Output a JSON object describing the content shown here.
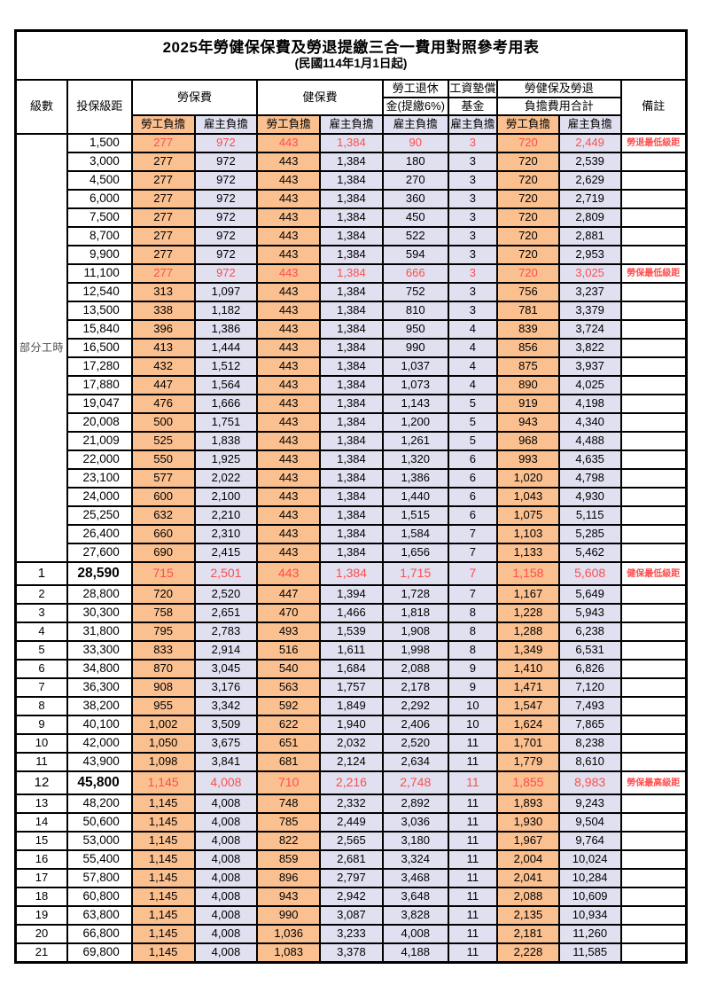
{
  "title": "2025年勞健保保費及勞退提繳三合一費用對照參考用表",
  "subtitle": "(民國114年1月1日起)",
  "colors": {
    "employee_bg": "#FAC090",
    "employer_bg": "#E0E0F0",
    "highlight_red": "#FF4D4D"
  },
  "columns": {
    "level": "級數",
    "bracket": "投保級距",
    "labor_insurance": "勞保費",
    "health_insurance": "健保費",
    "pension_line1": "勞工退休",
    "pension_line2": "金(提繳6%)",
    "wage_fund_line1": "工資墊償",
    "wage_fund_line2": "基金",
    "total_line1": "勞健保及勞退",
    "total_line2": "負擔費用合計",
    "remark": "備註",
    "employee_share": "勞工負擔",
    "employer_share": "雇主負擔"
  },
  "group_label": "部分工時",
  "rows": [
    {
      "level": "",
      "bracket": "1,500",
      "values": [
        "277",
        "972",
        "443",
        "1,384",
        "90",
        "3",
        "720",
        "2,449"
      ],
      "note": "勞退最低級距",
      "style": "red"
    },
    {
      "level": "",
      "bracket": "3,000",
      "values": [
        "277",
        "972",
        "443",
        "1,384",
        "180",
        "3",
        "720",
        "2,539"
      ],
      "note": "",
      "style": ""
    },
    {
      "level": "",
      "bracket": "4,500",
      "values": [
        "277",
        "972",
        "443",
        "1,384",
        "270",
        "3",
        "720",
        "2,629"
      ],
      "note": "",
      "style": ""
    },
    {
      "level": "",
      "bracket": "6,000",
      "values": [
        "277",
        "972",
        "443",
        "1,384",
        "360",
        "3",
        "720",
        "2,719"
      ],
      "note": "",
      "style": ""
    },
    {
      "level": "",
      "bracket": "7,500",
      "values": [
        "277",
        "972",
        "443",
        "1,384",
        "450",
        "3",
        "720",
        "2,809"
      ],
      "note": "",
      "style": ""
    },
    {
      "level": "",
      "bracket": "8,700",
      "values": [
        "277",
        "972",
        "443",
        "1,384",
        "522",
        "3",
        "720",
        "2,881"
      ],
      "note": "",
      "style": ""
    },
    {
      "level": "",
      "bracket": "9,900",
      "values": [
        "277",
        "972",
        "443",
        "1,384",
        "594",
        "3",
        "720",
        "2,953"
      ],
      "note": "",
      "style": ""
    },
    {
      "level": "",
      "bracket": "11,100",
      "values": [
        "277",
        "972",
        "443",
        "1,384",
        "666",
        "3",
        "720",
        "3,025"
      ],
      "note": "勞保最低級距",
      "style": "red"
    },
    {
      "level": "",
      "bracket": "12,540",
      "values": [
        "313",
        "1,097",
        "443",
        "1,384",
        "752",
        "3",
        "756",
        "3,237"
      ],
      "note": "",
      "style": ""
    },
    {
      "level": "",
      "bracket": "13,500",
      "values": [
        "338",
        "1,182",
        "443",
        "1,384",
        "810",
        "3",
        "781",
        "3,379"
      ],
      "note": "",
      "style": ""
    },
    {
      "level": "",
      "bracket": "15,840",
      "values": [
        "396",
        "1,386",
        "443",
        "1,384",
        "950",
        "4",
        "839",
        "3,724"
      ],
      "note": "",
      "style": ""
    },
    {
      "level": "",
      "bracket": "16,500",
      "values": [
        "413",
        "1,444",
        "443",
        "1,384",
        "990",
        "4",
        "856",
        "3,822"
      ],
      "note": "",
      "style": ""
    },
    {
      "level": "",
      "bracket": "17,280",
      "values": [
        "432",
        "1,512",
        "443",
        "1,384",
        "1,037",
        "4",
        "875",
        "3,937"
      ],
      "note": "",
      "style": ""
    },
    {
      "level": "",
      "bracket": "17,880",
      "values": [
        "447",
        "1,564",
        "443",
        "1,384",
        "1,073",
        "4",
        "890",
        "4,025"
      ],
      "note": "",
      "style": ""
    },
    {
      "level": "",
      "bracket": "19,047",
      "values": [
        "476",
        "1,666",
        "443",
        "1,384",
        "1,143",
        "5",
        "919",
        "4,198"
      ],
      "note": "",
      "style": ""
    },
    {
      "level": "",
      "bracket": "20,008",
      "values": [
        "500",
        "1,751",
        "443",
        "1,384",
        "1,200",
        "5",
        "943",
        "4,340"
      ],
      "note": "",
      "style": ""
    },
    {
      "level": "",
      "bracket": "21,009",
      "values": [
        "525",
        "1,838",
        "443",
        "1,384",
        "1,261",
        "5",
        "968",
        "4,488"
      ],
      "note": "",
      "style": ""
    },
    {
      "level": "",
      "bracket": "22,000",
      "values": [
        "550",
        "1,925",
        "443",
        "1,384",
        "1,320",
        "6",
        "993",
        "4,635"
      ],
      "note": "",
      "style": ""
    },
    {
      "level": "",
      "bracket": "23,100",
      "values": [
        "577",
        "2,022",
        "443",
        "1,384",
        "1,386",
        "6",
        "1,020",
        "4,798"
      ],
      "note": "",
      "style": ""
    },
    {
      "level": "",
      "bracket": "24,000",
      "values": [
        "600",
        "2,100",
        "443",
        "1,384",
        "1,440",
        "6",
        "1,043",
        "4,930"
      ],
      "note": "",
      "style": ""
    },
    {
      "level": "",
      "bracket": "25,250",
      "values": [
        "632",
        "2,210",
        "443",
        "1,384",
        "1,515",
        "6",
        "1,075",
        "5,115"
      ],
      "note": "",
      "style": ""
    },
    {
      "level": "",
      "bracket": "26,400",
      "values": [
        "660",
        "2,310",
        "443",
        "1,384",
        "1,584",
        "7",
        "1,103",
        "5,285"
      ],
      "note": "",
      "style": ""
    },
    {
      "level": "",
      "bracket": "27,600",
      "values": [
        "690",
        "2,415",
        "443",
        "1,384",
        "1,656",
        "7",
        "1,133",
        "5,462"
      ],
      "note": "",
      "style": ""
    },
    {
      "level": "1",
      "bracket": "28,590",
      "values": [
        "715",
        "2,501",
        "443",
        "1,384",
        "1,715",
        "7",
        "1,158",
        "5,608"
      ],
      "note": "健保最低級距",
      "style": "red-big"
    },
    {
      "level": "2",
      "bracket": "28,800",
      "values": [
        "720",
        "2,520",
        "447",
        "1,394",
        "1,728",
        "7",
        "1,167",
        "5,649"
      ],
      "note": "",
      "style": ""
    },
    {
      "level": "3",
      "bracket": "30,300",
      "values": [
        "758",
        "2,651",
        "470",
        "1,466",
        "1,818",
        "8",
        "1,228",
        "5,943"
      ],
      "note": "",
      "style": ""
    },
    {
      "level": "4",
      "bracket": "31,800",
      "values": [
        "795",
        "2,783",
        "493",
        "1,539",
        "1,908",
        "8",
        "1,288",
        "6,238"
      ],
      "note": "",
      "style": ""
    },
    {
      "level": "5",
      "bracket": "33,300",
      "values": [
        "833",
        "2,914",
        "516",
        "1,611",
        "1,998",
        "8",
        "1,349",
        "6,531"
      ],
      "note": "",
      "style": ""
    },
    {
      "level": "6",
      "bracket": "34,800",
      "values": [
        "870",
        "3,045",
        "540",
        "1,684",
        "2,088",
        "9",
        "1,410",
        "6,826"
      ],
      "note": "",
      "style": ""
    },
    {
      "level": "7",
      "bracket": "36,300",
      "values": [
        "908",
        "3,176",
        "563",
        "1,757",
        "2,178",
        "9",
        "1,471",
        "7,120"
      ],
      "note": "",
      "style": ""
    },
    {
      "level": "8",
      "bracket": "38,200",
      "values": [
        "955",
        "3,342",
        "592",
        "1,849",
        "2,292",
        "10",
        "1,547",
        "7,493"
      ],
      "note": "",
      "style": ""
    },
    {
      "level": "9",
      "bracket": "40,100",
      "values": [
        "1,002",
        "3,509",
        "622",
        "1,940",
        "2,406",
        "10",
        "1,624",
        "7,865"
      ],
      "note": "",
      "style": ""
    },
    {
      "level": "10",
      "bracket": "42,000",
      "values": [
        "1,050",
        "3,675",
        "651",
        "2,032",
        "2,520",
        "11",
        "1,701",
        "8,238"
      ],
      "note": "",
      "style": ""
    },
    {
      "level": "11",
      "bracket": "43,900",
      "values": [
        "1,098",
        "3,841",
        "681",
        "2,124",
        "2,634",
        "11",
        "1,779",
        "8,610"
      ],
      "note": "",
      "style": ""
    },
    {
      "level": "12",
      "bracket": "45,800",
      "values": [
        "1,145",
        "4,008",
        "710",
        "2,216",
        "2,748",
        "11",
        "1,855",
        "8,983"
      ],
      "note": "勞保最高級距",
      "style": "red-big"
    },
    {
      "level": "13",
      "bracket": "48,200",
      "values": [
        "1,145",
        "4,008",
        "748",
        "2,332",
        "2,892",
        "11",
        "1,893",
        "9,243"
      ],
      "note": "",
      "style": ""
    },
    {
      "level": "14",
      "bracket": "50,600",
      "values": [
        "1,145",
        "4,008",
        "785",
        "2,449",
        "3,036",
        "11",
        "1,930",
        "9,504"
      ],
      "note": "",
      "style": ""
    },
    {
      "level": "15",
      "bracket": "53,000",
      "values": [
        "1,145",
        "4,008",
        "822",
        "2,565",
        "3,180",
        "11",
        "1,967",
        "9,764"
      ],
      "note": "",
      "style": ""
    },
    {
      "level": "16",
      "bracket": "55,400",
      "values": [
        "1,145",
        "4,008",
        "859",
        "2,681",
        "3,324",
        "11",
        "2,004",
        "10,024"
      ],
      "note": "",
      "style": ""
    },
    {
      "level": "17",
      "bracket": "57,800",
      "values": [
        "1,145",
        "4,008",
        "896",
        "2,797",
        "3,468",
        "11",
        "2,041",
        "10,284"
      ],
      "note": "",
      "style": ""
    },
    {
      "level": "18",
      "bracket": "60,800",
      "values": [
        "1,145",
        "4,008",
        "943",
        "2,942",
        "3,648",
        "11",
        "2,088",
        "10,609"
      ],
      "note": "",
      "style": ""
    },
    {
      "level": "19",
      "bracket": "63,800",
      "values": [
        "1,145",
        "4,008",
        "990",
        "3,087",
        "3,828",
        "11",
        "2,135",
        "10,934"
      ],
      "note": "",
      "style": ""
    },
    {
      "level": "20",
      "bracket": "66,800",
      "values": [
        "1,145",
        "4,008",
        "1,036",
        "3,233",
        "4,008",
        "11",
        "2,181",
        "11,260"
      ],
      "note": "",
      "style": ""
    },
    {
      "level": "21",
      "bracket": "69,800",
      "values": [
        "1,145",
        "4,008",
        "1,083",
        "3,378",
        "4,188",
        "11",
        "2,228",
        "11,585"
      ],
      "note": "",
      "style": ""
    }
  ]
}
